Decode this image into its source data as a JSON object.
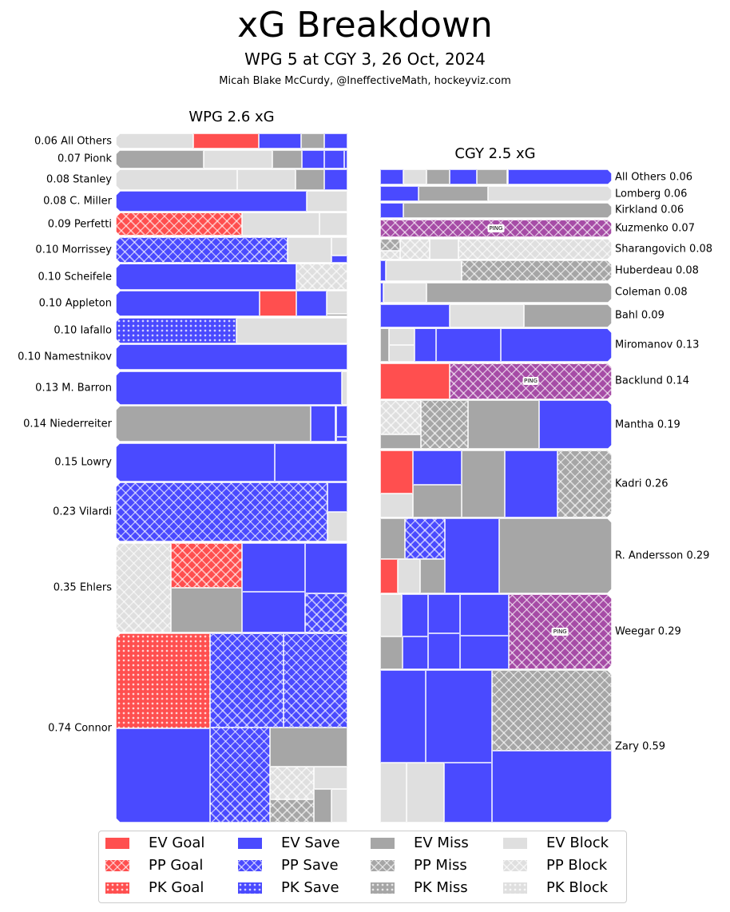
{
  "title": "xG Breakdown",
  "subtitle": "WPG 5 at CGY 3, 26 Oct, 2024",
  "credit": "Micah Blake McCurdy, @IneffectiveMath, hockeyviz.com",
  "colors": {
    "Goal": "#ff4f4f",
    "Save": "#4a4aff",
    "Miss": "#a6a6a6",
    "Block": "#dfdfdf",
    "Ping": "#a64ca6"
  },
  "chart_data": {
    "type": "treemap",
    "teams": [
      {
        "abbr": "WPG",
        "title": "WPG 2.6 xG",
        "side": "left",
        "players": [
          {
            "name": "All Others",
            "xg": "0.06",
            "shots": [
              [
                "EV",
                "Block",
                0.02
              ],
              [
                "EV",
                "Goal",
                0.017
              ],
              [
                "EV",
                "Save",
                0.011
              ],
              [
                "EV",
                "Miss",
                0.006
              ],
              [
                "EV",
                "Save",
                0.006
              ]
            ]
          },
          {
            "name": "Pionk",
            "xg": "0.07",
            "shots": [
              [
                "EV",
                "Miss",
                0.027
              ],
              [
                "EV",
                "Block",
                0.021
              ],
              [
                "EV",
                "Miss",
                0.009
              ],
              [
                "EV",
                "Save",
                0.007
              ],
              [
                "EV",
                "Save",
                0.006
              ],
              [
                "EV",
                "Save",
                0.001
              ]
            ]
          },
          {
            "name": "Stanley",
            "xg": "0.08",
            "shots": [
              [
                "EV",
                "Block",
                0.042
              ],
              [
                "EV",
                "Block",
                0.02
              ],
              [
                "EV",
                "Miss",
                0.01
              ],
              [
                "EV",
                "Save",
                0.008
              ]
            ]
          },
          {
            "name": "C. Miller",
            "xg": "0.08",
            "shots": [
              [
                "EV",
                "Save",
                0.066
              ],
              [
                "EV",
                "Block",
                0.014
              ]
            ]
          },
          {
            "name": "Perfetti",
            "xg": "0.09",
            "shots": [
              [
                "PP",
                "Goal",
                0.049
              ],
              [
                "EV",
                "Block",
                0.03
              ],
              [
                "EV",
                "Block",
                0.011
              ]
            ]
          },
          {
            "name": "Morrissey",
            "xg": "0.10",
            "shots": [
              [
                "PP",
                "Save",
                0.074
              ],
              [
                "EV",
                "Block",
                0.019
              ],
              [
                "EV",
                "Block",
                0.005
              ],
              [
                "EV",
                "Save",
                0.002
              ]
            ]
          },
          {
            "name": "Scheifele",
            "xg": "0.10",
            "shots": [
              [
                "EV",
                "Save",
                0.078
              ],
              [
                "PP",
                "Block",
                0.022
              ]
            ]
          },
          {
            "name": "Appleton",
            "xg": "0.10",
            "shots": [
              [
                "EV",
                "Save",
                0.062
              ],
              [
                "EV",
                "Goal",
                0.016
              ],
              [
                "EV",
                "Save",
                0.013
              ],
              [
                "EV",
                "Block",
                0.008
              ],
              [
                "EV",
                "Miss",
                0.001
              ]
            ]
          },
          {
            "name": "Iafallo",
            "xg": "0.10",
            "shots": [
              [
                "PK",
                "Save",
                0.052
              ],
              [
                "EV",
                "Block",
                0.048
              ]
            ]
          },
          {
            "name": "Namestnikov",
            "xg": "0.10",
            "shots": [
              [
                "EV",
                "Save",
                0.1
              ]
            ]
          },
          {
            "name": "M. Barron",
            "xg": "0.13",
            "shots": [
              [
                "EV",
                "Save",
                0.127
              ],
              [
                "EV",
                "Block",
                0.003
              ]
            ]
          },
          {
            "name": "Niederreiter",
            "xg": "0.14",
            "shots": [
              [
                "EV",
                "Miss",
                0.118
              ],
              [
                "EV",
                "Save",
                0.015
              ],
              [
                "EV",
                "Save",
                0.006
              ],
              [
                "EV",
                "Save",
                0.001
              ]
            ]
          },
          {
            "name": "Lowry",
            "xg": "0.15",
            "shots": [
              [
                "EV",
                "Save",
                0.103
              ],
              [
                "EV",
                "Save",
                0.047
              ]
            ]
          },
          {
            "name": "Vilardi",
            "xg": "0.23",
            "shots": [
              [
                "PP",
                "Save",
                0.21
              ],
              [
                "EV",
                "Save",
                0.01
              ],
              [
                "EV",
                "Block",
                0.01
              ]
            ]
          },
          {
            "name": "Ehlers",
            "xg": "0.35",
            "shots": [
              [
                "PP",
                "Block",
                0.083
              ],
              [
                "PP",
                "Goal",
                0.054
              ],
              [
                "EV",
                "Miss",
                0.053
              ],
              [
                "EV",
                "Save",
                0.052
              ],
              [
                "EV",
                "Save",
                0.043
              ],
              [
                "EV",
                "Save",
                0.036
              ],
              [
                "PP",
                "Save",
                0.028
              ]
            ]
          },
          {
            "name": "Connor",
            "xg": "0.74",
            "shots": [
              [
                "PK",
                "Goal",
                0.15
              ],
              [
                "EV",
                "Save",
                0.149
              ],
              [
                "PP",
                "Save",
                0.116
              ],
              [
                "PP",
                "Save",
                0.101
              ],
              [
                "PP",
                "Save",
                0.097
              ],
              [
                "EV",
                "Miss",
                0.051
              ],
              [
                "PP",
                "Block",
                0.024
              ],
              [
                "PP",
                "Miss",
                0.017
              ],
              [
                "EV",
                "Block",
                0.013
              ],
              [
                "EV",
                "Miss",
                0.01
              ],
              [
                "EV",
                "Block",
                0.009
              ]
            ]
          }
        ]
      },
      {
        "abbr": "CGY",
        "title": "CGY 2.5 xG",
        "side": "right",
        "players": [
          {
            "name": "All Others",
            "xg": "0.06",
            "shots": [
              [
                "EV",
                "Save",
                0.027
              ],
              [
                "EV",
                "Miss",
                0.008
              ],
              [
                "EV",
                "Save",
                0.007
              ],
              [
                "EV",
                "Miss",
                0.006
              ],
              [
                "EV",
                "Block",
                0.006
              ],
              [
                "EV",
                "Save",
                0.006
              ]
            ]
          },
          {
            "name": "Lomberg",
            "xg": "0.06",
            "shots": [
              [
                "EV",
                "Block",
                0.032
              ],
              [
                "EV",
                "Miss",
                0.018
              ],
              [
                "EV",
                "Save",
                0.01
              ]
            ]
          },
          {
            "name": "Kirkland",
            "xg": "0.06",
            "shots": [
              [
                "EV",
                "Miss",
                0.054
              ],
              [
                "EV",
                "Save",
                0.006
              ]
            ]
          },
          {
            "name": "Kuzmenko",
            "xg": "0.07",
            "shots": [
              [
                "PP",
                "Ping",
                0.07,
                "PING"
              ]
            ]
          },
          {
            "name": "Sharangovich",
            "xg": "0.08",
            "shots": [
              [
                "PP",
                "Block",
                0.053
              ],
              [
                "EV",
                "Block",
                0.01
              ],
              [
                "PP",
                "Block",
                0.01
              ],
              [
                "PP",
                "Miss",
                0.004
              ],
              [
                "PP",
                "Block",
                0.003
              ]
            ]
          },
          {
            "name": "Huberdeau",
            "xg": "0.08",
            "shots": [
              [
                "PP",
                "Miss",
                0.052
              ],
              [
                "EV",
                "Block",
                0.026
              ],
              [
                "EV",
                "Save",
                0.002
              ]
            ]
          },
          {
            "name": "Coleman",
            "xg": "0.08",
            "shots": [
              [
                "EV",
                "Miss",
                0.064
              ],
              [
                "EV",
                "Block",
                0.015
              ],
              [
                "EV",
                "Save",
                0.001
              ]
            ]
          },
          {
            "name": "Bahl",
            "xg": "0.09",
            "shots": [
              [
                "EV",
                "Miss",
                0.034
              ],
              [
                "EV",
                "Block",
                0.029
              ],
              [
                "EV",
                "Save",
                0.027
              ]
            ]
          },
          {
            "name": "Miromanov",
            "xg": "0.13",
            "shots": [
              [
                "EV",
                "Save",
                0.062
              ],
              [
                "EV",
                "Save",
                0.036
              ],
              [
                "EV",
                "Save",
                0.012
              ],
              [
                "EV",
                "Block",
                0.007
              ],
              [
                "EV",
                "Block",
                0.007
              ],
              [
                "EV",
                "Miss",
                0.005
              ]
            ]
          },
          {
            "name": "Backlund",
            "xg": "0.14",
            "shots": [
              [
                "PP",
                "Ping",
                0.098,
                "PING"
              ],
              [
                "EV",
                "Goal",
                0.042
              ]
            ]
          },
          {
            "name": "Mantha",
            "xg": "0.19",
            "shots": [
              [
                "EV",
                "Save",
                0.059
              ],
              [
                "EV",
                "Miss",
                0.058
              ],
              [
                "PP",
                "Miss",
                0.039
              ],
              [
                "PP",
                "Block",
                0.023
              ],
              [
                "EV",
                "Miss",
                0.01
              ]
            ]
          },
          {
            "name": "Kadri",
            "xg": "0.26",
            "shots": [
              [
                "PP",
                "Miss",
                0.061
              ],
              [
                "EV",
                "Save",
                0.059
              ],
              [
                "EV",
                "Miss",
                0.048
              ],
              [
                "EV",
                "Save",
                0.028
              ],
              [
                "EV",
                "Miss",
                0.026
              ],
              [
                "EV",
                "Goal",
                0.024
              ],
              [
                "EV",
                "Block",
                0.013
              ]
            ]
          },
          {
            "name": "R. Andersson",
            "xg": "0.29",
            "shots": [
              [
                "EV",
                "Miss",
                0.141
              ],
              [
                "EV",
                "Save",
                0.068
              ],
              [
                "PP",
                "Save",
                0.027
              ],
              [
                "EV",
                "Miss",
                0.017
              ],
              [
                "EV",
                "Miss",
                0.014
              ],
              [
                "EV",
                "Block",
                0.013
              ],
              [
                "EV",
                "Goal",
                0.01
              ]
            ]
          },
          {
            "name": "Weegar",
            "xg": "0.29",
            "shots": [
              [
                "PP",
                "Ping",
                0.129,
                "PING"
              ],
              [
                "EV",
                "Save",
                0.033
              ],
              [
                "EV",
                "Save",
                0.027
              ],
              [
                "EV",
                "Save",
                0.021
              ],
              [
                "EV",
                "Save",
                0.019
              ],
              [
                "EV",
                "Save",
                0.019
              ],
              [
                "EV",
                "Block",
                0.015
              ],
              [
                "EV",
                "Save",
                0.014
              ],
              [
                "EV",
                "Miss",
                0.012
              ]
            ]
          },
          {
            "name": "Zary",
            "xg": "0.59",
            "shots": [
              [
                "PP",
                "Miss",
                0.162
              ],
              [
                "EV",
                "Save",
                0.144
              ],
              [
                "EV",
                "Save",
                0.102
              ],
              [
                "EV",
                "Save",
                0.071
              ],
              [
                "EV",
                "Save",
                0.047
              ],
              [
                "EV",
                "Block",
                0.038
              ],
              [
                "EV",
                "Block",
                0.026
              ]
            ]
          }
        ]
      }
    ],
    "legend": [
      [
        "EV Goal",
        "EV",
        "Goal"
      ],
      [
        "EV Save",
        "EV",
        "Save"
      ],
      [
        "EV Miss",
        "EV",
        "Miss"
      ],
      [
        "EV Block",
        "EV",
        "Block"
      ],
      [
        "PP Goal",
        "PP",
        "Goal"
      ],
      [
        "PP Save",
        "PP",
        "Save"
      ],
      [
        "PP Miss",
        "PP",
        "Miss"
      ],
      [
        "PP Block",
        "PP",
        "Block"
      ],
      [
        "PK Goal",
        "PK",
        "Goal"
      ],
      [
        "PK Save",
        "PK",
        "Save"
      ],
      [
        "PK Miss",
        "PK",
        "Miss"
      ],
      [
        "PK Block",
        "PK",
        "Block"
      ]
    ],
    "legend_position": "bottom"
  }
}
